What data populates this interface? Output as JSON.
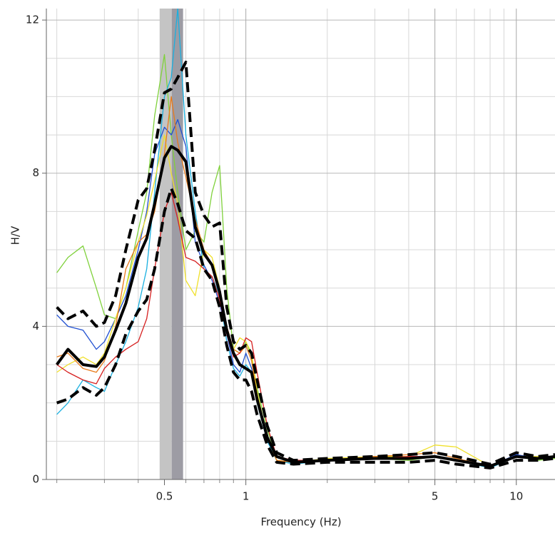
{
  "chart_data": {
    "type": "line",
    "xlabel": "Frequency (Hz)",
    "ylabel": "H/V",
    "xscale": "log",
    "xlim": [
      0.183,
      13.9
    ],
    "ylim": [
      0,
      12.3
    ],
    "xticks": [
      0.5,
      1,
      5,
      10
    ],
    "yticks": [
      0,
      4,
      8,
      12
    ],
    "xminor_ticks": [
      0.2,
      0.3,
      0.4,
      0.6,
      0.7,
      0.8,
      0.9,
      2,
      3,
      4,
      6,
      7,
      8,
      9
    ],
    "yminor_ticks": [
      1,
      2,
      3,
      5,
      6,
      7,
      9,
      10,
      11
    ],
    "grid": true,
    "peak_band": {
      "low": 0.48,
      "center": 0.532,
      "high": 0.586,
      "colors": [
        "#c4c4c4",
        "#9d9ca4"
      ]
    },
    "x": [
      0.2,
      0.22,
      0.25,
      0.28,
      0.3,
      0.33,
      0.36,
      0.4,
      0.43,
      0.46,
      0.5,
      0.53,
      0.56,
      0.6,
      0.65,
      0.7,
      0.75,
      0.8,
      0.85,
      0.9,
      0.95,
      1.0,
      1.05,
      1.1,
      1.2,
      1.3,
      1.5,
      2,
      3,
      4,
      5,
      6,
      8,
      10,
      12,
      13.9
    ],
    "series": [
      {
        "color": "#7fd13b",
        "line_style": "thin",
        "values": [
          5.4,
          5.8,
          6.1,
          5.0,
          4.3,
          4.2,
          5.0,
          6.5,
          7.5,
          9.5,
          11.1,
          9.0,
          7.5,
          6.0,
          6.5,
          6.2,
          7.5,
          8.2,
          5.0,
          3.4,
          3.3,
          3.6,
          3.2,
          2.4,
          1.3,
          0.6,
          0.45,
          0.5,
          0.55,
          0.5,
          0.6,
          0.5,
          0.35,
          0.6,
          0.5,
          0.55
        ]
      },
      {
        "color": "#1f4fd1",
        "line_style": "thin",
        "values": [
          4.3,
          4.0,
          3.9,
          3.4,
          3.6,
          4.2,
          4.8,
          6.0,
          7.0,
          8.5,
          9.2,
          9.0,
          9.4,
          8.7,
          6.2,
          5.6,
          5.2,
          4.6,
          3.8,
          3.0,
          2.8,
          3.3,
          2.9,
          2.2,
          1.1,
          0.6,
          0.45,
          0.5,
          0.6,
          0.6,
          0.6,
          0.5,
          0.35,
          0.65,
          0.55,
          0.6
        ]
      },
      {
        "color": "#1ab0e0",
        "line_style": "thin",
        "values": [
          1.7,
          2.0,
          2.6,
          2.4,
          2.3,
          3.0,
          3.6,
          4.5,
          5.5,
          7.5,
          10.0,
          10.5,
          12.3,
          9.0,
          7.0,
          5.5,
          5.3,
          4.8,
          3.6,
          2.9,
          2.7,
          3.0,
          2.8,
          2.0,
          1.0,
          0.5,
          0.4,
          0.5,
          0.55,
          0.55,
          0.6,
          0.5,
          0.3,
          0.6,
          0.55,
          0.6
        ]
      },
      {
        "color": "#f0e02a",
        "line_style": "thin",
        "values": [
          2.8,
          3.0,
          3.2,
          3.0,
          3.3,
          4.2,
          5.0,
          6.2,
          6.9,
          7.8,
          9.0,
          8.0,
          7.2,
          5.2,
          4.8,
          6.0,
          5.8,
          5.0,
          3.9,
          3.4,
          3.7,
          3.6,
          3.3,
          2.3,
          1.1,
          0.5,
          0.45,
          0.55,
          0.6,
          0.6,
          0.9,
          0.85,
          0.35,
          0.6,
          0.6,
          0.6
        ]
      },
      {
        "color": "#e87a1a",
        "line_style": "thin",
        "values": [
          3.2,
          3.3,
          2.9,
          2.8,
          3.1,
          4.0,
          5.5,
          6.2,
          6.4,
          7.0,
          8.5,
          10.0,
          8.8,
          7.9,
          6.8,
          6.0,
          5.6,
          4.8,
          4.0,
          3.4,
          3.3,
          3.5,
          3.1,
          2.2,
          1.1,
          0.5,
          0.45,
          0.5,
          0.6,
          0.65,
          0.7,
          0.55,
          0.35,
          0.6,
          0.55,
          0.6
        ]
      },
      {
        "color": "#d62020",
        "line_style": "thin",
        "values": [
          3.0,
          2.8,
          2.6,
          2.5,
          2.9,
          3.2,
          3.4,
          3.6,
          4.2,
          5.5,
          7.0,
          7.5,
          6.8,
          5.8,
          5.7,
          5.5,
          5.3,
          4.7,
          3.8,
          3.2,
          3.3,
          3.7,
          3.6,
          2.8,
          1.4,
          0.6,
          0.5,
          0.5,
          0.55,
          0.6,
          0.6,
          0.5,
          0.35,
          0.6,
          0.55,
          0.6
        ]
      },
      {
        "color": "#000000",
        "line_style": "dashed",
        "values": [
          4.5,
          4.2,
          4.4,
          4.0,
          4.1,
          4.8,
          6.0,
          7.3,
          7.6,
          8.6,
          10.1,
          10.2,
          10.5,
          10.9,
          7.5,
          6.9,
          6.6,
          6.7,
          4.5,
          3.6,
          3.4,
          3.5,
          3.3,
          2.6,
          1.4,
          0.7,
          0.5,
          0.55,
          0.6,
          0.65,
          0.7,
          0.6,
          0.4,
          0.7,
          0.6,
          0.65
        ]
      },
      {
        "color": "#000000",
        "line_style": "dashed",
        "values": [
          2.0,
          2.1,
          2.4,
          2.2,
          2.4,
          3.0,
          3.8,
          4.4,
          4.7,
          5.5,
          7.0,
          7.6,
          7.2,
          6.5,
          6.3,
          5.5,
          5.2,
          4.5,
          3.5,
          2.8,
          2.6,
          2.6,
          2.3,
          1.7,
          0.9,
          0.45,
          0.4,
          0.45,
          0.45,
          0.45,
          0.5,
          0.4,
          0.3,
          0.5,
          0.5,
          0.55
        ]
      },
      {
        "color": "#000000",
        "line_style": "solid",
        "values": [
          3.0,
          3.4,
          3.0,
          2.95,
          3.2,
          3.9,
          4.6,
          5.8,
          6.3,
          7.2,
          8.4,
          8.7,
          8.6,
          8.3,
          6.6,
          5.9,
          5.6,
          4.9,
          3.9,
          3.3,
          3.0,
          2.9,
          2.8,
          2.1,
          1.1,
          0.6,
          0.45,
          0.5,
          0.55,
          0.55,
          0.6,
          0.5,
          0.35,
          0.6,
          0.55,
          0.6
        ]
      }
    ]
  }
}
